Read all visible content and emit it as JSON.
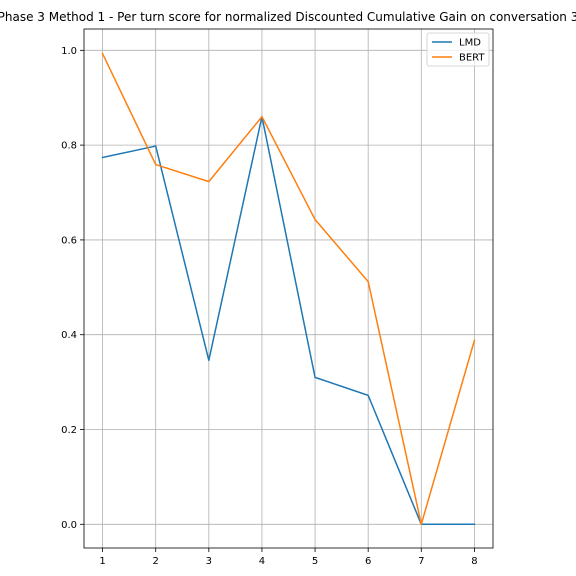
{
  "chart_data": {
    "type": "line",
    "title": "Phase 3 Method 1 - Per turn score for normalized Discounted Cumulative Gain on conversation 3",
    "xlabel": "",
    "ylabel": "",
    "x": [
      1,
      2,
      3,
      4,
      5,
      6,
      7,
      8
    ],
    "xticks": [
      "1",
      "2",
      "3",
      "4",
      "5",
      "6",
      "7",
      "8"
    ],
    "yticks": [
      "0.0",
      "0.2",
      "0.4",
      "0.6",
      "0.8",
      "1.0"
    ],
    "xlim": [
      0.65,
      8.35
    ],
    "ylim": [
      -0.05,
      1.045
    ],
    "grid": true,
    "legend_position": "top-right",
    "series": [
      {
        "name": "LMD",
        "color": "#1f77b4",
        "values": [
          0.774,
          0.798,
          0.346,
          0.86,
          0.31,
          0.272,
          0.0,
          0.0
        ]
      },
      {
        "name": "BERT",
        "color": "#ff7f0e",
        "values": [
          0.993,
          0.759,
          0.723,
          0.86,
          0.643,
          0.512,
          0.0,
          0.388
        ]
      }
    ]
  }
}
